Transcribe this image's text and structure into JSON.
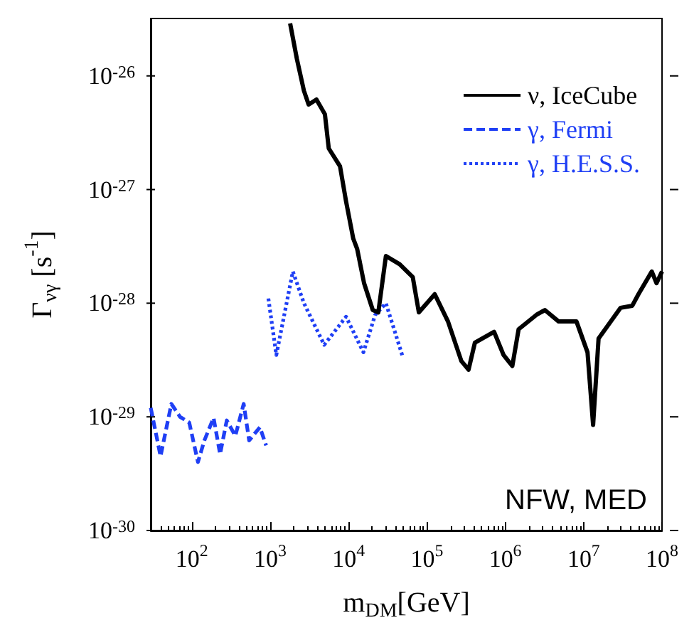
{
  "chart_data": {
    "type": "line",
    "xlabel": "m$_{DM}$[GeV]",
    "ylabel": "Γ$_{νγ}$ [s$^{-1}$]",
    "log": "xy",
    "grid": false,
    "legend": "top right",
    "marker": "none",
    "xlim": [
      30,
      100000000
    ],
    "ylim": [
      1e-30,
      3.2e-26
    ],
    "xticks": [
      {
        "value": 100,
        "label": "10$^{2}$"
      },
      {
        "value": 1000,
        "label": "10$^{3}$"
      },
      {
        "value": 10000,
        "label": "10$^{4}$"
      },
      {
        "value": 100000,
        "label": "10$^{5}$"
      },
      {
        "value": 1000000,
        "label": "10$^{6}$"
      },
      {
        "value": 10000000,
        "label": "10$^{7}$"
      },
      {
        "value": 100000000,
        "label": "10$^{8}$"
      }
    ],
    "yticks": [
      {
        "value": 1e-30,
        "label": "10$^{-30}$"
      },
      {
        "value": 1e-29,
        "label": "10$^{-29}$"
      },
      {
        "value": 1e-28,
        "label": "10$^{-28}$"
      },
      {
        "value": 1e-27,
        "label": "10$^{-27}$"
      },
      {
        "value": 1e-26,
        "label": "10$^{-26}$"
      }
    ],
    "annotations": [
      "NFW, MED"
    ],
    "series": [
      {
        "name": "ν, IceCube",
        "color": "#000000",
        "line_style": "solid",
        "x": [
          1800,
          2200,
          2700,
          3100,
          3900,
          5000,
          5600,
          7800,
          9300,
          11500,
          12900,
          15800,
          20400,
          24000,
          30000,
          45000,
          66000,
          79000,
          126000,
          186000,
          275000,
          340000,
          410000,
          720000,
          950000,
          1230000,
          1480000,
          2500000,
          3200000,
          4800000,
          8100000,
          11200000,
          13200000,
          15500000,
          29500000,
          41700000,
          50000000,
          74000000,
          85000000,
          100000000
        ],
        "values": [
          2.9e-26,
          1.4e-26,
          7.4e-27,
          5.6e-27,
          6.2e-27,
          4.6e-27,
          2.3e-27,
          1.6e-27,
          7.9e-28,
          3.7e-28,
          3e-28,
          1.5e-28,
          8.7e-29,
          8.3e-29,
          2.6e-28,
          2.2e-28,
          1.7e-28,
          8.3e-29,
          1.2e-28,
          6.9e-29,
          3.1e-29,
          2.6e-29,
          4.5e-29,
          5.6e-29,
          3.5e-29,
          2.8e-29,
          5.9e-29,
          7.9e-29,
          8.7e-29,
          6.9e-29,
          6.9e-29,
          3.7e-29,
          8.5e-30,
          4.9e-29,
          9.1e-29,
          9.5e-29,
          1.2e-28,
          1.9e-28,
          1.5e-28,
          1.9e-28
        ]
      },
      {
        "name": "γ, Fermi",
        "color": "#1f3ff5",
        "line_style": "dashed",
        "x": [
          30,
          40,
          55,
          71,
          93,
          120,
          145,
          190,
          230,
          280,
          360,
          460,
          540,
          740,
          890
        ],
        "values": [
          1.2e-29,
          4.5e-30,
          1.3e-29,
          1e-29,
          8.9e-30,
          4e-30,
          6.2e-30,
          9.8e-30,
          4.7e-30,
          9.3e-30,
          6.8e-30,
          1.3e-29,
          6.2e-30,
          8.1e-30,
          5.6e-30
        ]
      },
      {
        "name": "γ, H.E.S.S.",
        "color": "#1f3ff5",
        "line_style": "dotted",
        "x": [
          950,
          1200,
          1950,
          2700,
          4900,
          9300,
          15500,
          21900,
          30000,
          49000
        ],
        "values": [
          1.1e-28,
          3.5e-29,
          1.9e-28,
          1e-28,
          4.3e-29,
          7.6e-29,
          3.7e-29,
          7.9e-29,
          1e-28,
          3.4e-29
        ]
      }
    ]
  }
}
